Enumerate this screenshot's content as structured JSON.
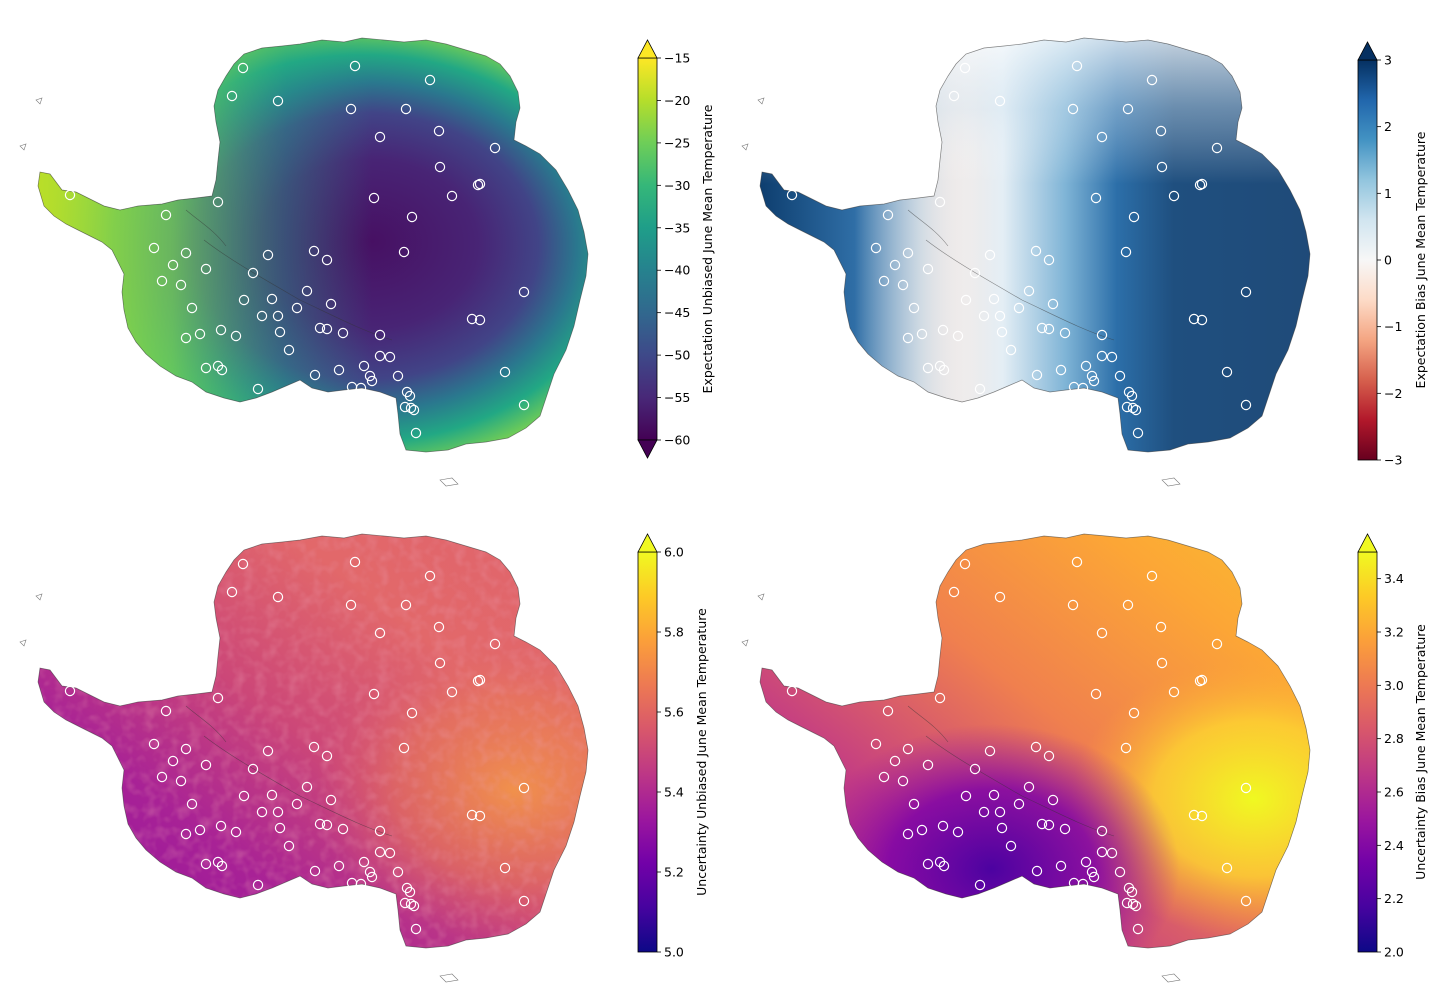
{
  "chart_data": [
    {
      "type": "heatmap",
      "panel": "top-left",
      "colormap": "viridis",
      "colorbar_label": "Expectation Unbiased June Mean Temperature",
      "colorbar_range": [
        -60,
        -15
      ],
      "colorbar_ticks": [
        "−15",
        "−20",
        "−25",
        "−30",
        "−35",
        "−40",
        "−45",
        "−50",
        "−55",
        "−60"
      ],
      "colorbar_extend": "both",
      "pattern": "cold interior (about −60) warming toward the coast (about −15 to −20)",
      "markers": "white hollow circles at weather station locations"
    },
    {
      "type": "heatmap",
      "panel": "top-right",
      "colormap": "RdBu",
      "colorbar_label": "Expectation Bias June Mean Temperature",
      "colorbar_range": [
        -3,
        3
      ],
      "colorbar_ticks": [
        "3",
        "2",
        "1",
        "0",
        "−1",
        "−2",
        "−3"
      ],
      "colorbar_extend": "max",
      "pattern": "strong positive bias (about 3) over East Antarctica, near zero to slightly negative over West Antarctica",
      "markers": "white hollow circles at weather station locations"
    },
    {
      "type": "heatmap",
      "panel": "bottom-left",
      "colormap": "plasma",
      "colorbar_label": "Uncertainty Unbiased June Mean Temperature",
      "colorbar_range": [
        5.0,
        6.0
      ],
      "colorbar_ticks": [
        "6.0",
        "5.8",
        "5.6",
        "5.4",
        "5.2",
        "5.0"
      ],
      "colorbar_extend": "max",
      "pattern": "noisy field about 5.2 to 5.9, lower near stations in West Antarctica",
      "markers": "white hollow circles at weather station locations"
    },
    {
      "type": "heatmap",
      "panel": "bottom-right",
      "colormap": "plasma",
      "colorbar_label": "Uncertainty Bias June Mean Temperature",
      "colorbar_range": [
        2.0,
        3.5
      ],
      "colorbar_ticks": [
        "3.4",
        "3.2",
        "3.0",
        "2.8",
        "2.6",
        "2.4",
        "2.2",
        "2.0"
      ],
      "colorbar_extend": "max",
      "pattern": "smooth field, low (about 2.2) near dense station clusters, high (about 3.4) over sparse eastern interior",
      "markers": "white hollow circles at weather station locations"
    }
  ],
  "colors": {
    "viridis": [
      "#440154",
      "#482878",
      "#3e4989",
      "#31688e",
      "#26828e",
      "#1f9e89",
      "#35b779",
      "#6ece58",
      "#b5de2b",
      "#fde725"
    ],
    "rdbu": [
      "#67001f",
      "#b2182b",
      "#d6604d",
      "#f4a582",
      "#fddbc7",
      "#f7f7f7",
      "#d1e5f0",
      "#92c5de",
      "#4393c3",
      "#2166ac",
      "#053061"
    ],
    "plasma": [
      "#0d0887",
      "#46039f",
      "#7201a8",
      "#9c179e",
      "#bd3786",
      "#d8576b",
      "#ed7953",
      "#fb9f3a",
      "#fdca26",
      "#f0f921"
    ],
    "station_marker": "#ffffff",
    "coastline": "#333333"
  }
}
